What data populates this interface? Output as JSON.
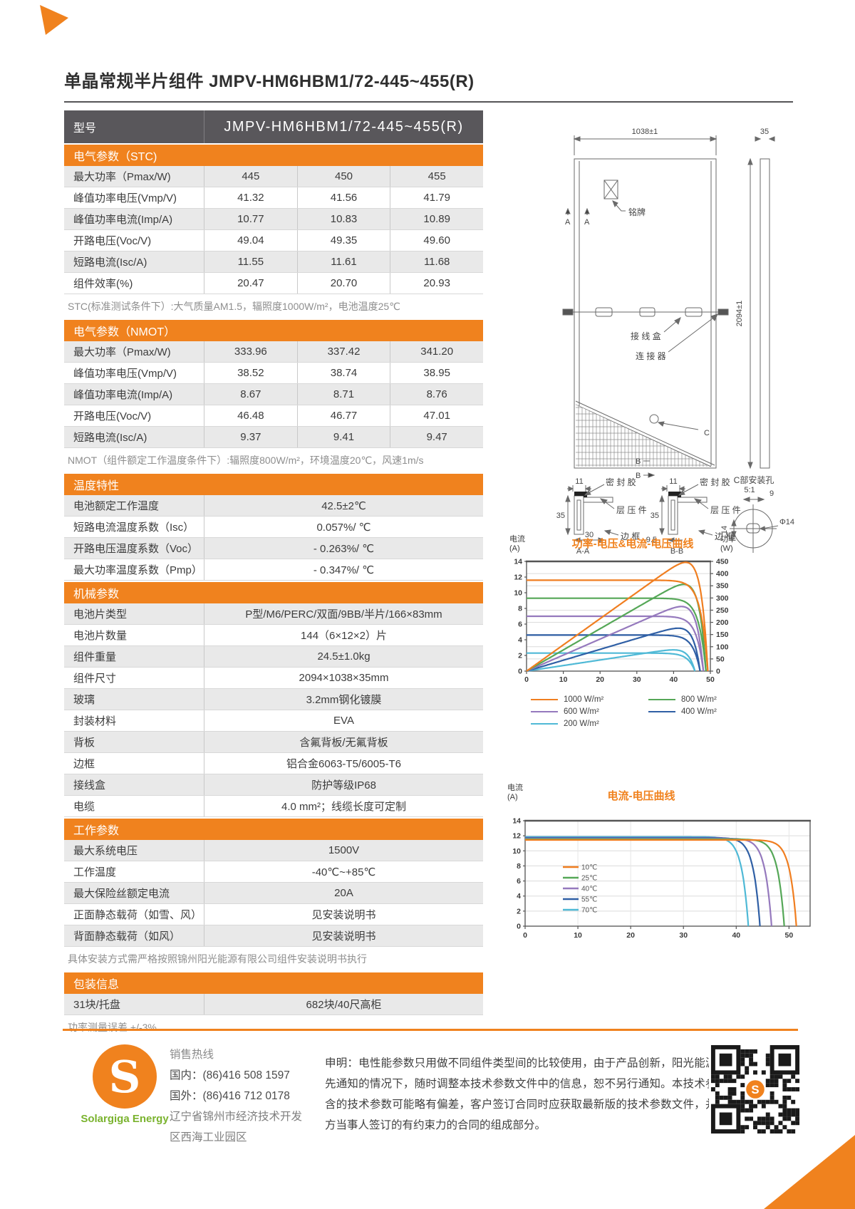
{
  "page": {
    "title": "单晶常规半片组件 JMPV-HM6HBM1/72-445~455(R)"
  },
  "model_table": {
    "model_label": "型号",
    "model_value": "JMPV-HM6HBM1/72-445~455(R)"
  },
  "sections": {
    "stc": {
      "header": "电气参数（STC)",
      "rows": [
        {
          "label": "最大功率（Pmax/W)",
          "values": [
            "445",
            "450",
            "455"
          ]
        },
        {
          "label": "峰值功率电压(Vmp/V)",
          "values": [
            "41.32",
            "41.56",
            "41.79"
          ]
        },
        {
          "label": "峰值功率电流(Imp/A)",
          "values": [
            "10.77",
            "10.83",
            "10.89"
          ]
        },
        {
          "label": "开路电压(Voc/V)",
          "values": [
            "49.04",
            "49.35",
            "49.60"
          ]
        },
        {
          "label": "短路电流(Isc/A)",
          "values": [
            "11.55",
            "11.61",
            "11.68"
          ]
        },
        {
          "label": "组件效率(%)",
          "values": [
            "20.47",
            "20.70",
            "20.93"
          ]
        }
      ],
      "note": "STC(标准测试条件下）:大气质量AM1.5，辐照度1000W/m²，电池温度25℃"
    },
    "nmot": {
      "header": "电气参数（NMOT）",
      "rows": [
        {
          "label": "最大功率（Pmax/W)",
          "values": [
            "333.96",
            "337.42",
            "341.20"
          ]
        },
        {
          "label": "峰值功率电压(Vmp/V)",
          "values": [
            "38.52",
            "38.74",
            "38.95"
          ]
        },
        {
          "label": "峰值功率电流(Imp/A)",
          "values": [
            "8.67",
            "8.71",
            "8.76"
          ]
        },
        {
          "label": "开路电压(Voc/V)",
          "values": [
            "46.48",
            "46.77",
            "47.01"
          ]
        },
        {
          "label": "短路电流(Isc/A)",
          "values": [
            "9.37",
            "9.41",
            "9.47"
          ]
        }
      ],
      "note": "NMOT（组件额定工作温度条件下）:辐照度800W/m²，环境温度20℃，风速1m/s"
    },
    "temperature": {
      "header": "温度特性",
      "rows": [
        {
          "label": "电池额定工作温度",
          "value": "42.5±2℃"
        },
        {
          "label": "短路电流温度系数（Isc）",
          "value": "0.057%/ ℃"
        },
        {
          "label": "开路电压温度系数（Voc）",
          "value": "- 0.263%/ ℃"
        },
        {
          "label": "最大功率温度系数（Pmp）",
          "value": "- 0.347%/ ℃"
        }
      ]
    },
    "mechanical": {
      "header": "机械参数",
      "rows": [
        {
          "label": "电池片类型",
          "value": "P型/M6/PERC/双面/9BB/半片/166×83mm"
        },
        {
          "label": "电池片数量",
          "value": "144（6×12×2）片"
        },
        {
          "label": "组件重量",
          "value": "24.5±1.0kg"
        },
        {
          "label": "组件尺寸",
          "value": "2094×1038×35mm"
        },
        {
          "label": "玻璃",
          "value": "3.2mm钢化镀膜"
        },
        {
          "label": "封装材料",
          "value": "EVA"
        },
        {
          "label": "背板",
          "value": "含氟背板/无氟背板"
        },
        {
          "label": "边框",
          "value": "铝合金6063-T5/6005-T6"
        },
        {
          "label": "接线盒",
          "value": "防护等级IP68"
        },
        {
          "label": "电缆",
          "value": "4.0 mm²；线缆长度可定制"
        }
      ]
    },
    "operating": {
      "header": "工作参数",
      "rows": [
        {
          "label": "最大系统电压",
          "value": "1500V"
        },
        {
          "label": "工作温度",
          "value": "-40℃~+85℃"
        },
        {
          "label": "最大保险丝额定电流",
          "value": "20A"
        },
        {
          "label": "正面静态载荷（如雪、风）",
          "value": "见安装说明书"
        },
        {
          "label": "背面静态载荷（如风）",
          "value": "见安装说明书"
        }
      ],
      "note": "具体安装方式需严格按照锦州阳光能源有限公司组件安装说明书执行"
    },
    "packaging": {
      "header": "包装信息",
      "row": {
        "label": "31块/托盘",
        "value": "682块/40尺高柜"
      },
      "note": "功率测量误差  +/-3%"
    }
  },
  "drawing": {
    "width_dim": "1038±1",
    "thickness_dim": "35",
    "height_dim": "2094±1",
    "nameplate": "铭牌",
    "section_a": "A",
    "junction_box": "接 线 盒",
    "connector": "连 接 器",
    "c_label": "C",
    "b_label": "B",
    "sealant": "密 封 胶",
    "laminate": "层 压 件",
    "frame": "边 框",
    "dim_11": "11",
    "dim_35": "35",
    "dim_30": "30",
    "dim_9_5": "9.5",
    "section_aa": "A-A",
    "section_bb": "B-B",
    "c_hole_title": "C部安装孔",
    "c_hole_scale": "5:1",
    "dim_9": "9",
    "dim_phi14": "Φ14",
    "dim_14": "14"
  },
  "chart_data": [
    {
      "type": "line",
      "title": "功率-电压&电流-电压曲线",
      "left_axis": {
        "label": "电流",
        "unit": "(A)",
        "min": 0,
        "max": 14,
        "tick_step": 2
      },
      "right_axis": {
        "label": "功率",
        "unit": "(W)",
        "min": 0,
        "max": 450,
        "tick_step": 50
      },
      "x_axis": {
        "min": 0,
        "max": 50,
        "tick_step": 10
      },
      "grid": "horizontal",
      "legend_position": "below",
      "curves": [
        "iv",
        "pv"
      ],
      "series": [
        {
          "name": "1000 W/m²",
          "color": "#F07E20",
          "isc": 11.6,
          "voc": 49.3,
          "pmax": 446
        },
        {
          "name": "800 W/m²",
          "color": "#55A757",
          "isc": 9.3,
          "voc": 48.8,
          "pmax": 356
        },
        {
          "name": "600 W/m²",
          "color": "#9579BD",
          "isc": 7.0,
          "voc": 48.1,
          "pmax": 265
        },
        {
          "name": "400 W/m²",
          "color": "#2F5FA5",
          "isc": 4.6,
          "voc": 47.2,
          "pmax": 176
        },
        {
          "name": "200 W/m²",
          "color": "#4FB9D6",
          "isc": 2.3,
          "voc": 45.8,
          "pmax": 87
        }
      ]
    },
    {
      "type": "line",
      "title": "电流-电压曲线",
      "y_axis": {
        "label": "电流",
        "unit": "(A)",
        "min": 0,
        "max": 14,
        "tick_step": 2
      },
      "x_axis": {
        "min": 0,
        "max": 54,
        "tick_step": 10,
        "last_tick": 50
      },
      "grid": "both",
      "legend_position": "inside-left",
      "curves": [
        "iv"
      ],
      "series": [
        {
          "name": "10℃",
          "color": "#F07E20",
          "isc": 11.45,
          "voc": 51.4
        },
        {
          "name": "25℃",
          "color": "#55A757",
          "isc": 11.55,
          "voc": 49.1
        },
        {
          "name": "40℃",
          "color": "#9579BD",
          "isc": 11.65,
          "voc": 46.7
        },
        {
          "name": "55℃",
          "color": "#2F5FA5",
          "isc": 11.75,
          "voc": 44.5
        },
        {
          "name": "70℃",
          "color": "#4FB9D6",
          "isc": 11.85,
          "voc": 42.3
        }
      ]
    }
  ],
  "footer": {
    "sales_title": "销售热线",
    "phone_domestic": "国内：(86)416 508 1597",
    "phone_international": "国外：(86)416 712 0178",
    "address": "辽宁省锦州市经济技术开发区西海工业园区",
    "logo_letter": "S",
    "brand": "Solargiga Energy",
    "statement": "申明：电性能参数只用做不同组件类型间的比较使用，由于产品创新，阳光能源有权在不事先通知的情况下，随时调整本技术参数文件中的信息，恕不另行通知。本技术参数文件中包含的技术参数可能略有偏差，客户签订合同时应获取最新版的技术参数文件，并将其作为双方当事人签订的有约束力的合同的组成部分。"
  }
}
